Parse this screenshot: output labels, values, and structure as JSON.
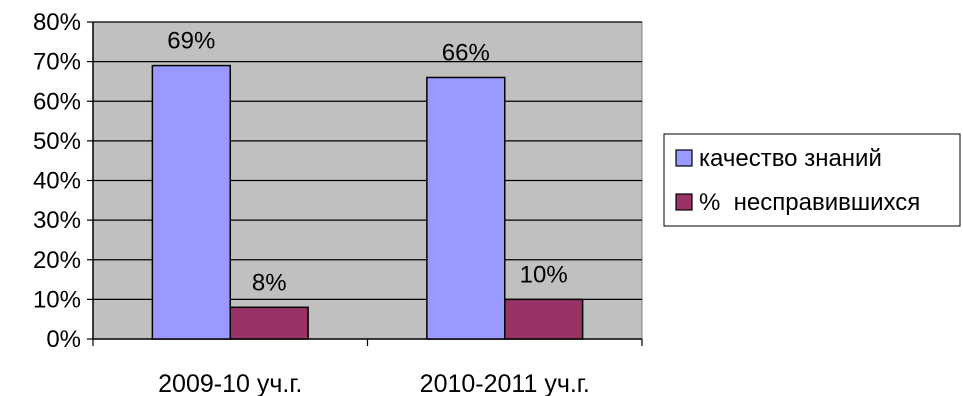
{
  "chart_data": {
    "type": "bar",
    "categories": [
      "2009-10 уч.г.",
      "2010-2011 уч.г."
    ],
    "series": [
      {
        "name": "качество знаний",
        "values": [
          69,
          66
        ],
        "color": "#9999ff",
        "labels": [
          "69%",
          "66%"
        ]
      },
      {
        "name": "%  несправившихся",
        "values": [
          8,
          10
        ],
        "color": "#993366",
        "labels": [
          "8%",
          "10%"
        ]
      }
    ],
    "y_ticks": [
      "0%",
      "10%",
      "20%",
      "30%",
      "40%",
      "50%",
      "60%",
      "70%",
      "80%"
    ],
    "ylim": [
      0,
      80
    ],
    "grid": true,
    "plot_background": "#c0c0c0",
    "legend_position": "right"
  }
}
